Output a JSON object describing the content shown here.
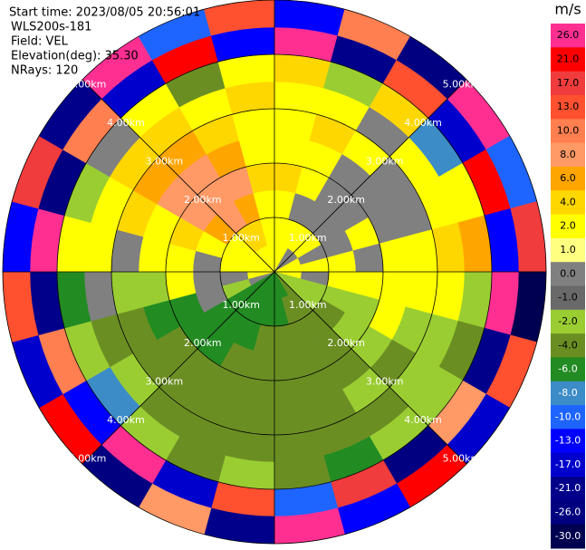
{
  "chart_data": {
    "type": "ppi",
    "header": [
      "Start time: 2023/08/05 20:56:01",
      "WLS200s-181",
      "Field: VEL",
      "Elevation(deg): 35.30",
      "NRays: 120"
    ],
    "range_labels": [
      "1.00km",
      "2.00km",
      "3.00km",
      "4.00km",
      "5.00km"
    ],
    "colorbar": {
      "title": "m/s",
      "ticks": [
        {
          "value": 26,
          "label": "26.0"
        },
        {
          "value": 21,
          "label": "21.0"
        },
        {
          "value": 17,
          "label": "17.0"
        },
        {
          "value": 13,
          "label": "13.0"
        },
        {
          "value": 10,
          "label": "10.0"
        },
        {
          "value": 8,
          "label": "8.0"
        },
        {
          "value": 6,
          "label": "6.0"
        },
        {
          "value": 4,
          "label": "4.0"
        },
        {
          "value": 2,
          "label": "2.0"
        },
        {
          "value": 1,
          "label": "1.0"
        },
        {
          "value": 0,
          "label": "0.0"
        },
        {
          "value": -1,
          "label": "-1.0"
        },
        {
          "value": -2,
          "label": "-2.0"
        },
        {
          "value": -4,
          "label": "-4.0"
        },
        {
          "value": -6,
          "label": "-6.0"
        },
        {
          "value": -8,
          "label": "-8.0"
        },
        {
          "value": -10,
          "label": "-10.0"
        },
        {
          "value": -13,
          "label": "-13.0"
        },
        {
          "value": -17,
          "label": "-17.0"
        },
        {
          "value": -21,
          "label": "-21.0"
        },
        {
          "value": -26,
          "label": "-26.0"
        },
        {
          "value": -30,
          "label": "-30.0"
        }
      ],
      "colors": [
        "#ff2f92",
        "#ff0000",
        "#f03c3c",
        "#ff5030",
        "#ff7f50",
        "#ff9966",
        "#ffa500",
        "#ffd700",
        "#ffff00",
        "#ffff80",
        "#808080",
        "#696969",
        "#9acd32",
        "#6b8e23",
        "#228b22",
        "#3c8cc8",
        "#1e64ff",
        "#0000ff",
        "#0000cd",
        "#00008b",
        "#000080",
        "#000050"
      ]
    },
    "values": [
      [
        2,
        2,
        2,
        4,
        2,
        2,
        2,
        4,
        26,
        -13
      ],
      [
        2,
        2,
        0,
        2,
        2,
        4,
        2,
        -2,
        -21,
        10
      ],
      [
        0,
        2,
        0,
        0,
        0,
        2,
        0,
        4,
        13,
        -26
      ],
      [
        0,
        2,
        0,
        0,
        0,
        0,
        2,
        -8,
        -17,
        26
      ],
      [
        2,
        0,
        0,
        2,
        0,
        0,
        2,
        2,
        21,
        -10
      ],
      [
        2,
        2,
        2,
        0,
        2,
        2,
        4,
        6,
        -13,
        17
      ],
      [
        2,
        0,
        2,
        2,
        2,
        2,
        2,
        -2,
        26,
        -30
      ],
      [
        -2,
        -2,
        -2,
        -2,
        2,
        -2,
        -2,
        -4,
        -21,
        13
      ],
      [
        -2,
        -2,
        -4,
        -2,
        -2,
        -4,
        -2,
        -2,
        8,
        -17
      ],
      [
        -4,
        -4,
        -4,
        -4,
        -4,
        -2,
        -4,
        -2,
        -26,
        21
      ],
      [
        -6,
        -4,
        -4,
        -4,
        -4,
        -4,
        -4,
        -6,
        17,
        -13
      ],
      [
        -6,
        -6,
        -4,
        -4,
        -4,
        -4,
        -4,
        -4,
        -10,
        26
      ],
      [
        -6,
        -6,
        -4,
        -4,
        -4,
        -4,
        -4,
        -2,
        13,
        -21
      ],
      [
        -6,
        -6,
        -6,
        -4,
        -4,
        -4,
        -4,
        -4,
        -17,
        8
      ],
      [
        -6,
        -6,
        -6,
        -6,
        -4,
        -4,
        -4,
        -2,
        26,
        -26
      ],
      [
        -6,
        -6,
        -6,
        -6,
        -4,
        -4,
        -2,
        -8,
        -13,
        21
      ],
      [
        0,
        -2,
        0,
        -6,
        -6,
        -4,
        -4,
        -2,
        10,
        -17
      ],
      [
        2,
        0,
        0,
        2,
        -2,
        -2,
        0,
        -6,
        -21,
        13
      ],
      [
        2,
        2,
        0,
        2,
        2,
        0,
        2,
        2,
        26,
        -13
      ],
      [
        2,
        2,
        2,
        4,
        2,
        4,
        2,
        -2,
        -26,
        17
      ],
      [
        2,
        2,
        6,
        8,
        8,
        6,
        4,
        0,
        10,
        -21
      ],
      [
        2,
        4,
        8,
        8,
        8,
        6,
        4,
        2,
        -17,
        26
      ],
      [
        2,
        4,
        6,
        8,
        6,
        4,
        2,
        -4,
        21,
        -10
      ],
      [
        2,
        2,
        2,
        4,
        2,
        2,
        4,
        2,
        -13,
        13
      ]
    ]
  }
}
